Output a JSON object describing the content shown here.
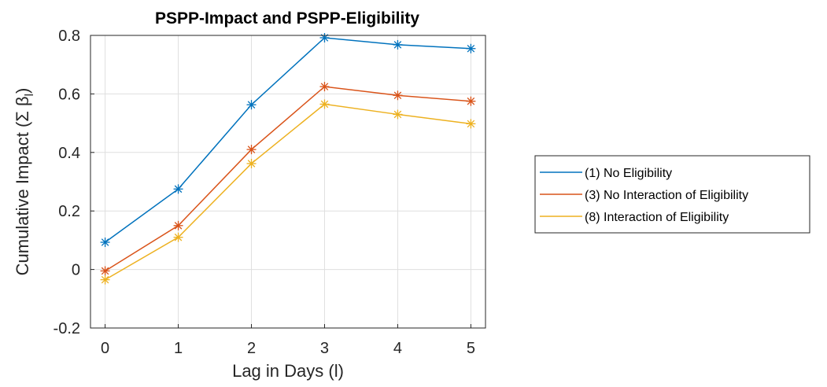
{
  "chart_data": {
    "type": "line",
    "title": "PSPP-Impact and PSPP-Eligibility",
    "xlabel": "Lag in Days (l)",
    "ylabel_main": "Cumulative Impact (Σ β",
    "ylabel_sub": "l",
    "ylabel_close": ")",
    "x": [
      0,
      1,
      2,
      3,
      4,
      5
    ],
    "xlim": [
      -0.2,
      5.2
    ],
    "ylim": [
      -0.2,
      0.8
    ],
    "xticks": [
      "0",
      "1",
      "2",
      "3",
      "4",
      "5"
    ],
    "yticks": [
      "-0.2",
      "0",
      "0.2",
      "0.4",
      "0.6",
      "0.8"
    ],
    "grid": true,
    "legend_position": "outside-right",
    "series": [
      {
        "name": "(1) No Eligibility",
        "color": "#0072BD",
        "values": [
          0.093,
          0.275,
          0.563,
          0.792,
          0.768,
          0.755
        ]
      },
      {
        "name": "(3) No Interaction of Eligibility",
        "color": "#D95319",
        "values": [
          -0.005,
          0.15,
          0.41,
          0.625,
          0.595,
          0.575
        ]
      },
      {
        "name": "(8) Interaction of Eligibility",
        "color": "#EDB120",
        "values": [
          -0.035,
          0.11,
          0.362,
          0.565,
          0.53,
          0.498
        ]
      }
    ]
  }
}
